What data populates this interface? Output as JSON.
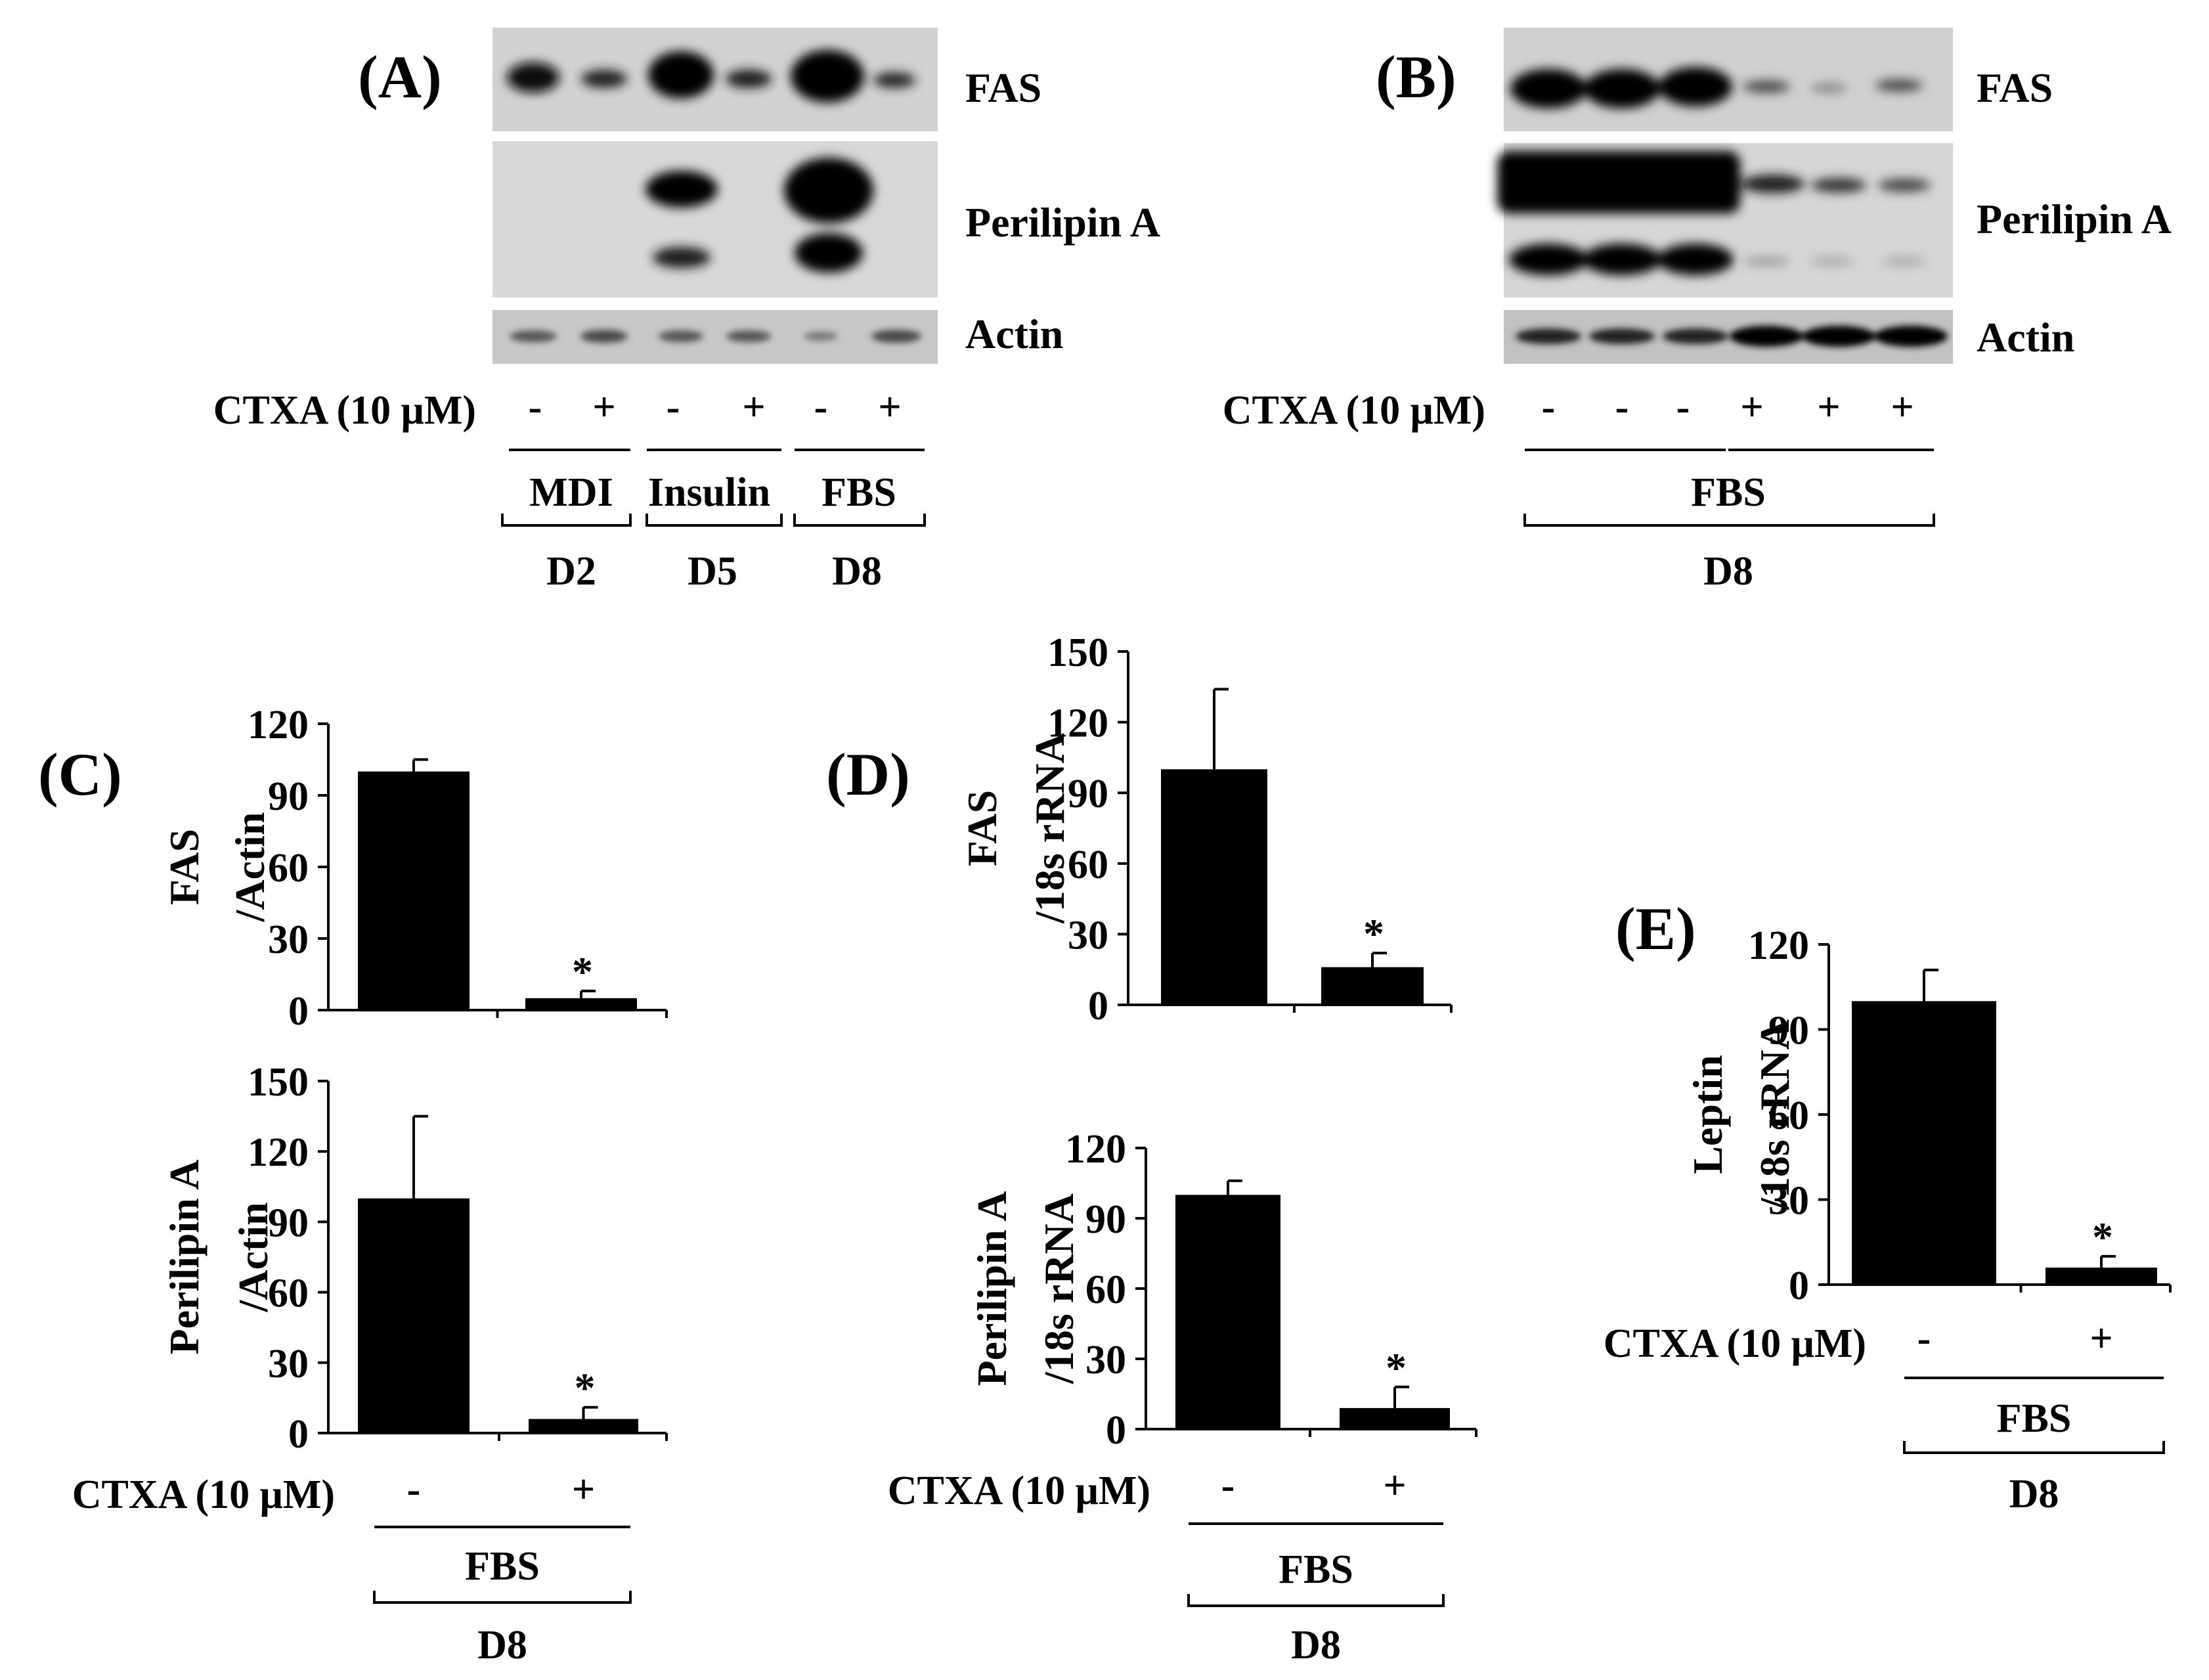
{
  "panels": {
    "A": {
      "label": "(A)",
      "bands": [
        "FAS",
        "Perilipin A",
        "Actin"
      ],
      "treatment_label": "CTXA (10 μM)",
      "signs": [
        "-",
        "+",
        "-",
        "+",
        "-",
        "+"
      ],
      "groups": [
        "MDI",
        "Insulin",
        "FBS"
      ],
      "days": [
        "D2",
        "D5",
        "D8"
      ]
    },
    "B": {
      "label": "(B)",
      "bands": [
        "FAS",
        "Perilipin A",
        "Actin"
      ],
      "treatment_label": "CTXA (10 μM)",
      "signs": [
        "-",
        "-",
        "-",
        "+",
        "+",
        "+"
      ],
      "group": "FBS",
      "day": "D8"
    },
    "C": {
      "label": "(C)"
    },
    "D": {
      "label": "(D)"
    },
    "E": {
      "label": "(E)"
    }
  },
  "chart_data": [
    {
      "id": "C-top",
      "type": "bar",
      "categories": [
        "-",
        "+"
      ],
      "values": [
        100,
        5
      ],
      "errors": [
        5,
        3
      ],
      "significance": [
        "",
        "*"
      ],
      "ylabel_lines": [
        "FAS",
        "/Actin"
      ],
      "ylim": [
        0,
        120
      ],
      "yticks": [
        0,
        30,
        60,
        90,
        120
      ],
      "grid": false,
      "color": "#000000"
    },
    {
      "id": "C-bottom",
      "type": "bar",
      "categories": [
        "-",
        "+"
      ],
      "values": [
        100,
        6
      ],
      "errors": [
        35,
        5
      ],
      "significance": [
        "",
        "*"
      ],
      "ylabel_lines": [
        "Perilipin A",
        "/Actin"
      ],
      "ylim": [
        0,
        150
      ],
      "yticks": [
        0,
        30,
        60,
        90,
        120,
        150
      ],
      "grid": false,
      "color": "#000000",
      "treatment_label": "CTXA (10 μM)",
      "group": "FBS",
      "day": "D8"
    },
    {
      "id": "D-top",
      "type": "bar",
      "categories": [
        "-",
        "+"
      ],
      "values": [
        100,
        16
      ],
      "errors": [
        34,
        6
      ],
      "significance": [
        "",
        "*"
      ],
      "ylabel_lines": [
        "FAS",
        "/18s rRNA"
      ],
      "ylim": [
        0,
        150
      ],
      "yticks": [
        0,
        30,
        60,
        90,
        120,
        150
      ],
      "grid": false,
      "color": "#000000"
    },
    {
      "id": "D-bottom",
      "type": "bar",
      "categories": [
        "-",
        "+"
      ],
      "values": [
        100,
        9
      ],
      "errors": [
        6,
        9
      ],
      "significance": [
        "",
        "*"
      ],
      "ylabel_lines": [
        "Perilipin A",
        "/18s rRNA"
      ],
      "ylim": [
        0,
        120
      ],
      "yticks": [
        0,
        30,
        60,
        90,
        120
      ],
      "grid": false,
      "color": "#000000",
      "treatment_label": "CTXA (10 μM)",
      "group": "FBS",
      "day": "D8"
    },
    {
      "id": "E",
      "type": "bar",
      "categories": [
        "-",
        "+"
      ],
      "values": [
        100,
        6
      ],
      "errors": [
        11,
        4
      ],
      "significance": [
        "",
        "*"
      ],
      "ylabel_lines": [
        "Leptin",
        "/18s rRNA"
      ],
      "ylim": [
        0,
        120
      ],
      "yticks": [
        0,
        30,
        60,
        90,
        120
      ],
      "grid": false,
      "color": "#000000",
      "treatment_label": "CTXA (10 μM)",
      "group": "FBS",
      "day": "D8"
    }
  ]
}
